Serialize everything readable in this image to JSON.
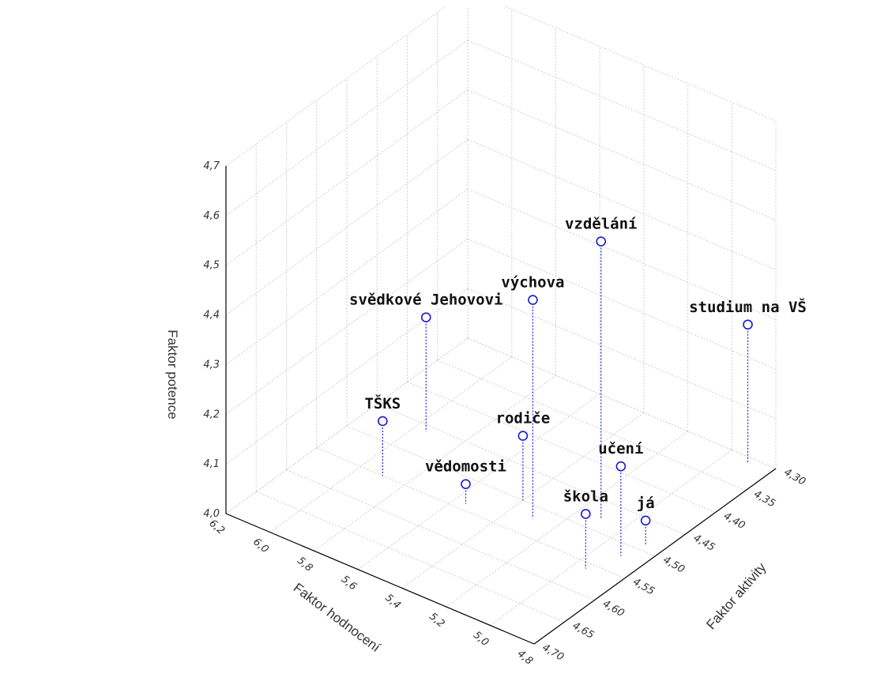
{
  "chart_data": {
    "type": "scatter",
    "title": "",
    "xlabel": "Faktor hodnocení",
    "ylabel": "Faktor aktivity",
    "zlabel": "Faktor potence",
    "x_ticks": [
      "6,2",
      "6,0",
      "5,8",
      "5,6",
      "5,4",
      "5,2",
      "5,0",
      "4,8"
    ],
    "y_ticks": [
      "4,30",
      "4,35",
      "4,40",
      "4,45",
      "4,50",
      "4,55",
      "4,60",
      "4,65",
      "4,70"
    ],
    "z_ticks": [
      "4,0",
      "4,1",
      "4,2",
      "4,3",
      "4,4",
      "4,5",
      "4,6",
      "4,7"
    ],
    "xlim": [
      4.8,
      6.2
    ],
    "ylim": [
      4.3,
      4.7
    ],
    "zlim": [
      4.0,
      4.7
    ],
    "grid": true,
    "marker_color": "#1a1acc",
    "points": [
      {
        "label": "vzdělání",
        "x": 5.1,
        "y": 4.48,
        "z": 4.56
      },
      {
        "label": "výchova",
        "x": 5.3,
        "y": 4.52,
        "z": 4.44
      },
      {
        "label": "studium na VŠ",
        "x": 4.9,
        "y": 4.31,
        "z": 4.28
      },
      {
        "label": "svědkové Jehovovi",
        "x": 5.95,
        "y": 4.46,
        "z": 4.23
      },
      {
        "label": "učení",
        "x": 4.9,
        "y": 4.52,
        "z": 4.18
      },
      {
        "label": "rodiče",
        "x": 5.4,
        "y": 4.5,
        "z": 4.13
      },
      {
        "label": "škola",
        "x": 4.95,
        "y": 4.56,
        "z": 4.11
      },
      {
        "label": "TŠKS",
        "x": 5.9,
        "y": 4.55,
        "z": 4.11
      },
      {
        "label": "já",
        "x": 4.87,
        "y": 4.49,
        "z": 4.05
      },
      {
        "label": "vědomosti",
        "x": 5.55,
        "y": 4.54,
        "z": 4.04
      }
    ]
  }
}
